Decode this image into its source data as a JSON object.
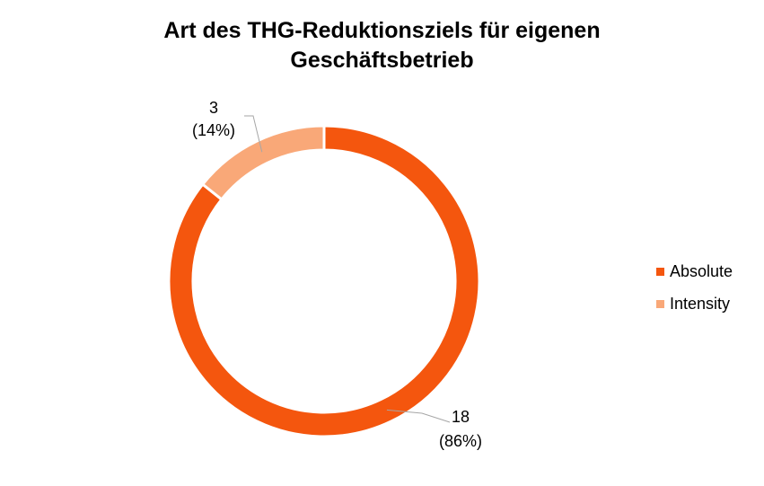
{
  "chart_data": {
    "type": "pie",
    "variant": "doughnut",
    "title": [
      "Art des THG-Reduktionsziels für eigenen",
      "Geschäftsbetrieb"
    ],
    "categories": [
      "Absolute",
      "Intensity"
    ],
    "values": [
      18,
      3
    ],
    "percent_labels": [
      "(86%)",
      "(14%)"
    ],
    "colors": [
      "#F4560E",
      "#F9A878"
    ],
    "legend_position": "right"
  }
}
